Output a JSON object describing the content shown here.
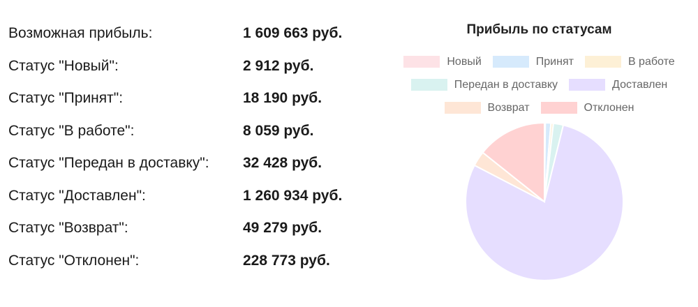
{
  "stats": [
    {
      "label": "Возможная прибыль:",
      "value": "1 609 663 руб."
    },
    {
      "label": "Статус \"Новый\":",
      "value": "2 912 руб."
    },
    {
      "label": "Статус \"Принят\":",
      "value": "18 190 руб."
    },
    {
      "label": "Статус \"В работе\":",
      "value": "8 059 руб."
    },
    {
      "label": "Статус \"Передан в доставку\":",
      "value": "32 428 руб."
    },
    {
      "label": "Статус \"Доставлен\":",
      "value": "1 260 934 руб."
    },
    {
      "label": "Статус \"Возврат\":",
      "value": "49 279 руб."
    },
    {
      "label": "Статус \"Отклонен\":",
      "value": "228 773 руб."
    }
  ],
  "chart_data": {
    "type": "pie",
    "title": "Прибыль по статусам",
    "legend_position": "top",
    "categories": [
      "Новый",
      "Принят",
      "В работе",
      "Передан в доставку",
      "Доставлен",
      "Возврат",
      "Отклонен"
    ],
    "values": [
      2912,
      18190,
      8059,
      32428,
      1260934,
      49279,
      228773
    ],
    "colors": [
      "#fde2e6",
      "#d6eafc",
      "#fdf0d6",
      "#d9f2f0",
      "#e6deff",
      "#fee6d6",
      "#ffd2d2"
    ],
    "borders": [
      "#f8b7c3",
      "#9ccdf3",
      "#f7d89a",
      "#a6e0db",
      "#c9b8ff",
      "#f9c9a6",
      "#ffb0b0"
    ]
  }
}
